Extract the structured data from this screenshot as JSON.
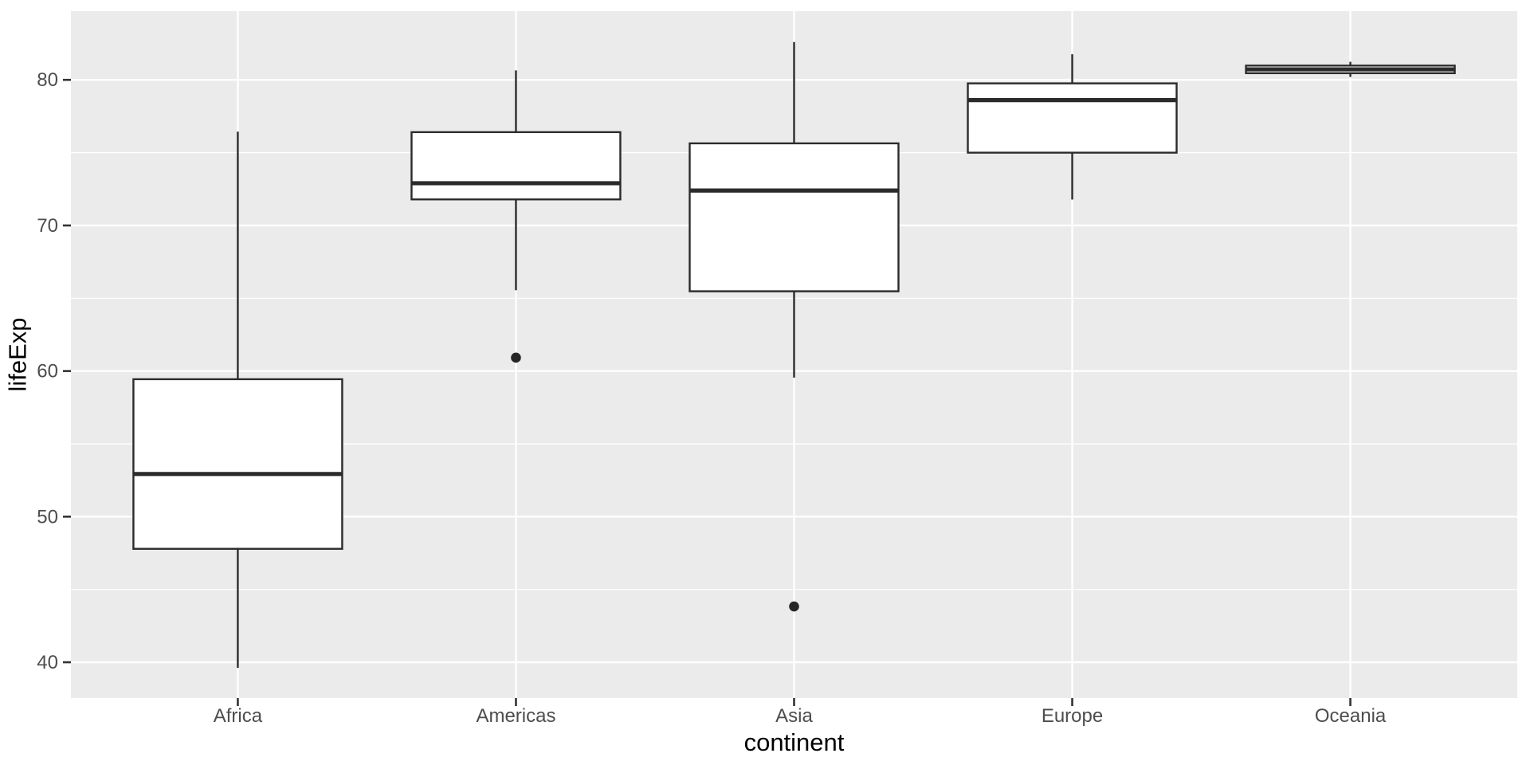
{
  "chart_data": {
    "type": "boxplot",
    "title": "",
    "xlabel": "continent",
    "ylabel": "lifeExp",
    "categories": [
      "Africa",
      "Americas",
      "Asia",
      "Europe",
      "Oceania"
    ],
    "series": [
      {
        "category": "Africa",
        "whisker_low": 39.61,
        "q1": 47.79,
        "median": 52.93,
        "q3": 59.44,
        "whisker_high": 76.44,
        "outliers": []
      },
      {
        "category": "Americas",
        "whisker_low": 65.55,
        "q1": 71.79,
        "median": 72.9,
        "q3": 76.41,
        "whisker_high": 80.65,
        "outliers": [
          60.92
        ]
      },
      {
        "category": "Asia",
        "whisker_low": 59.55,
        "q1": 65.48,
        "median": 72.4,
        "q3": 75.64,
        "whisker_high": 82.6,
        "outliers": [
          43.83
        ]
      },
      {
        "category": "Europe",
        "whisker_low": 71.78,
        "q1": 75.0,
        "median": 78.61,
        "q3": 79.76,
        "whisker_high": 81.76,
        "outliers": []
      },
      {
        "category": "Oceania",
        "whisker_low": 80.2,
        "q1": 80.46,
        "median": 80.72,
        "q3": 80.98,
        "whisker_high": 81.24,
        "outliers": []
      }
    ],
    "y_axis": {
      "tick_labels": [
        "40",
        "50",
        "60",
        "70",
        "80"
      ],
      "tick_values": [
        40,
        50,
        60,
        70,
        80
      ],
      "minor_tick_values": [
        45,
        55,
        65,
        75
      ],
      "range": [
        37.54,
        84.72
      ]
    },
    "x_axis": {
      "tick_labels": [
        "Africa",
        "Americas",
        "Asia",
        "Europe",
        "Oceania"
      ]
    },
    "legend": "none",
    "grid": "horizontal major+minor, vertical major at category centers",
    "colors": {
      "panel_background": "#ebebeb",
      "gridline": "#ffffff",
      "box_fill": "#ffffff",
      "box_stroke": "#2b2b2b",
      "outlier_point": "#262626",
      "axis_tick": "#333333",
      "tick_label": "#4d4d4d",
      "axis_title": "#000000"
    }
  }
}
